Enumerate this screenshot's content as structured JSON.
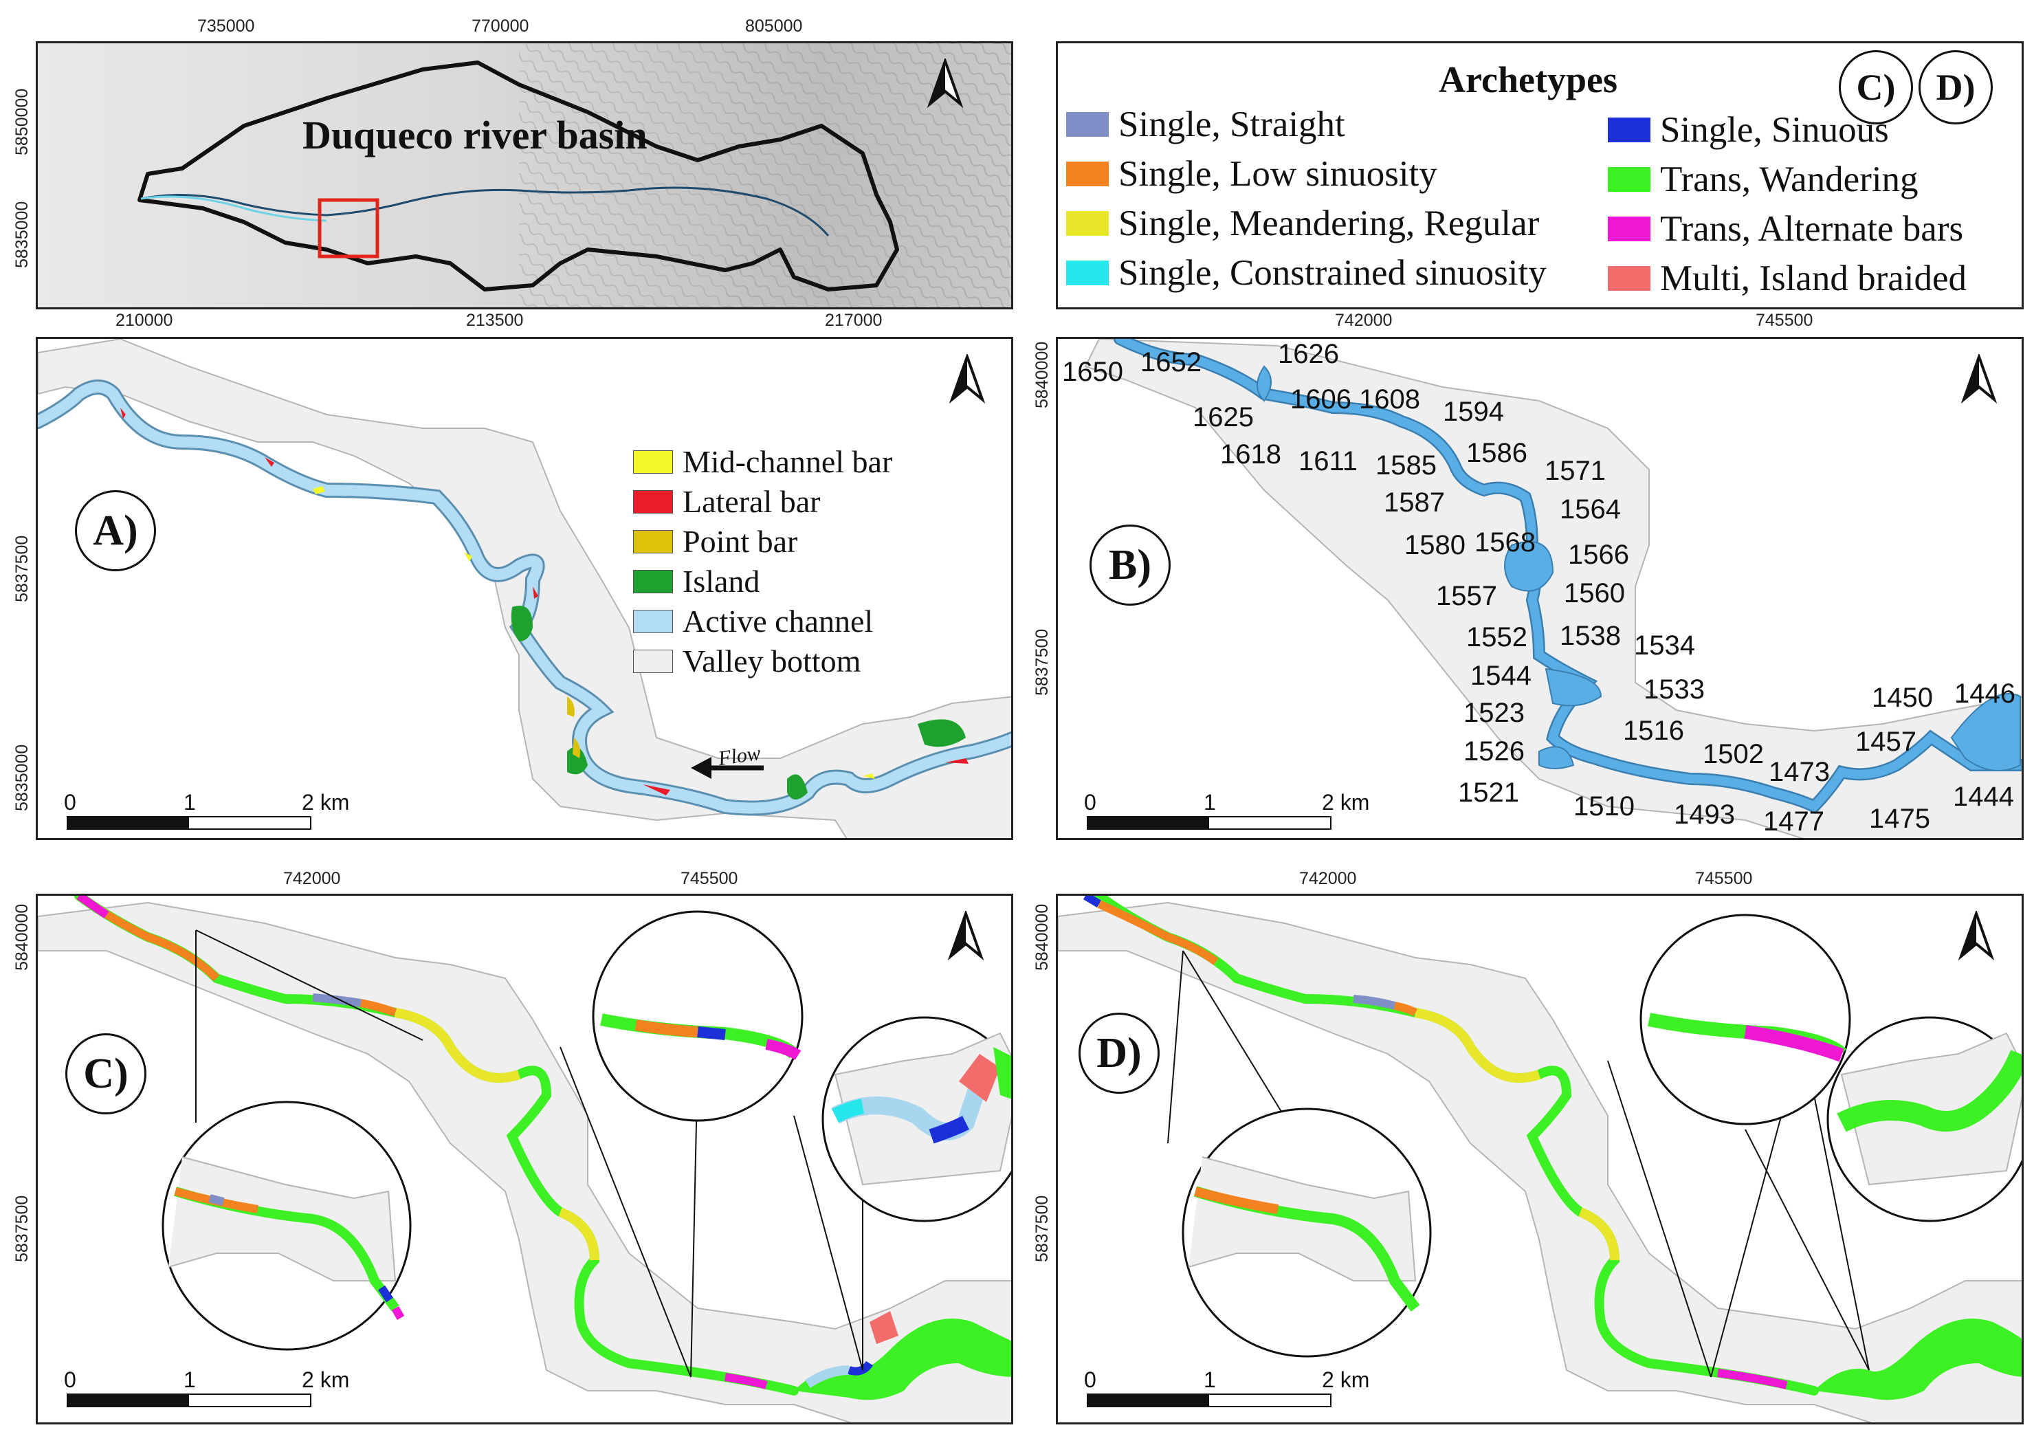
{
  "overview": {
    "title": "Duqueco river basin",
    "top_ticks": [
      "735000",
      "770000",
      "805000"
    ],
    "left_ticks": [
      "5850000",
      "5835000"
    ],
    "bottom_ticks": [
      "210000",
      "213500",
      "217000"
    ]
  },
  "archetypes_legend": {
    "title": "Archetypes",
    "badges": [
      "C)",
      "D)"
    ],
    "items": [
      {
        "label": "Single, Straight",
        "color": "#7f8fc6"
      },
      {
        "label": "Single, Low sinuosity",
        "color": "#f58220"
      },
      {
        "label": "Single, Meandering, Regular",
        "color": "#e8e62a"
      },
      {
        "label": "Single, Constrained sinuosity",
        "color": "#25e6ea"
      },
      {
        "label": "Single, Sinuous",
        "color": "#1d2fd6"
      },
      {
        "label": "Trans, Wandering",
        "color": "#3cf024"
      },
      {
        "label": "Trans, Alternate bars",
        "color": "#ef17d3"
      },
      {
        "label": "Multi, Island braided",
        "color": "#f36c6c"
      }
    ]
  },
  "panel_a": {
    "letter": "A)",
    "left_ticks": [
      "5837500",
      "5835000"
    ],
    "legend": [
      {
        "label": "Mid-channel bar",
        "color": "#f4f72a"
      },
      {
        "label": "Lateral bar",
        "color": "#ea1c2a"
      },
      {
        "label": "Point bar",
        "color": "#dcc20a"
      },
      {
        "label": "Island",
        "color": "#1ea12e"
      },
      {
        "label": "Active channel",
        "color": "#b3ddf5"
      },
      {
        "label": "Valley bottom",
        "color": "#efefef"
      }
    ],
    "flow_label": "Flow",
    "scale": [
      "0",
      "1",
      "2 km"
    ]
  },
  "panel_b": {
    "letter": "B)",
    "top_ticks": [
      "742000",
      "745500"
    ],
    "left_ticks": [
      "5840000",
      "5837500"
    ],
    "scale": [
      "0",
      "1",
      "2 km"
    ],
    "cross_section_labels": [
      "1650",
      "1652",
      "1626",
      "1625",
      "1606",
      "1608",
      "1594",
      "1618",
      "1611",
      "1585",
      "1586",
      "1571",
      "1587",
      "1564",
      "1580",
      "1568",
      "1566",
      "1557",
      "1560",
      "1552",
      "1538",
      "1534",
      "1544",
      "1533",
      "1523",
      "1516",
      "1526",
      "1502",
      "1521",
      "1510",
      "1473",
      "1493",
      "1477",
      "1475",
      "1450",
      "1446",
      "1457",
      "1444"
    ]
  },
  "panel_c": {
    "letter": "C)",
    "top_ticks": [
      "742000",
      "745500"
    ],
    "left_ticks": [
      "5840000",
      "5837500"
    ],
    "scale": [
      "0",
      "1",
      "2 km"
    ]
  },
  "panel_d": {
    "letter": "D)",
    "top_ticks": [
      "742000",
      "745500"
    ],
    "left_ticks": [
      "5840000",
      "5837500"
    ],
    "scale": [
      "0",
      "1",
      "2 km"
    ]
  },
  "colors": {
    "valley": "#efefef",
    "valley_edge": "#b5b5b5",
    "channel": "#b3ddf5",
    "channel_edge": "#5b8fb0",
    "section_fill": "#5aaee6",
    "outline": "#111111",
    "inset_box": "#e0261b"
  }
}
